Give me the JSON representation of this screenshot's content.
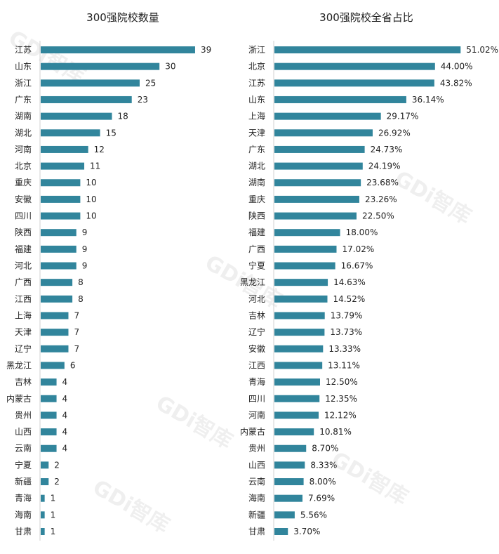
{
  "watermark": "GDi智库",
  "bar_color": "#31859C",
  "chart_data": [
    {
      "type": "bar",
      "orientation": "horizontal",
      "title": "300强院校数量",
      "categories": [
        "江苏",
        "山东",
        "浙江",
        "广东",
        "湖南",
        "湖北",
        "河南",
        "北京",
        "重庆",
        "安徽",
        "四川",
        "陕西",
        "福建",
        "河北",
        "广西",
        "江西",
        "上海",
        "天津",
        "辽宁",
        "黑龙江",
        "吉林",
        "内蒙古",
        "贵州",
        "山西",
        "云南",
        "宁夏",
        "新疆",
        "青海",
        "海南",
        "甘肃"
      ],
      "values": [
        39,
        30,
        25,
        23,
        18,
        15,
        12,
        11,
        10,
        10,
        10,
        9,
        9,
        9,
        8,
        8,
        7,
        7,
        7,
        6,
        4,
        4,
        4,
        4,
        4,
        2,
        2,
        1,
        1,
        1
      ],
      "value_labels": [
        "39",
        "30",
        "25",
        "23",
        "18",
        "15",
        "12",
        "11",
        "10",
        "10",
        "10",
        "9",
        "9",
        "9",
        "8",
        "8",
        "7",
        "7",
        "7",
        "6",
        "4",
        "4",
        "4",
        "4",
        "4",
        "2",
        "2",
        "1",
        "1",
        "1"
      ],
      "xlim": [
        0,
        45
      ],
      "grid": false
    },
    {
      "type": "bar",
      "orientation": "horizontal",
      "title": "300强院校全省占比",
      "categories": [
        "浙江",
        "北京",
        "江苏",
        "山东",
        "上海",
        "天津",
        "广东",
        "湖北",
        "湖南",
        "重庆",
        "陕西",
        "福建",
        "广西",
        "宁夏",
        "黑龙江",
        "河北",
        "吉林",
        "辽宁",
        "安徽",
        "江西",
        "青海",
        "四川",
        "河南",
        "内蒙古",
        "贵州",
        "山西",
        "云南",
        "海南",
        "新疆",
        "甘肃"
      ],
      "values": [
        51.02,
        44.0,
        43.82,
        36.14,
        29.17,
        26.92,
        24.73,
        24.19,
        23.68,
        23.26,
        22.5,
        18.0,
        17.02,
        16.67,
        14.63,
        14.52,
        13.79,
        13.73,
        13.33,
        13.11,
        12.5,
        12.35,
        12.12,
        10.81,
        8.7,
        8.33,
        8.0,
        7.69,
        5.56,
        3.7
      ],
      "value_labels": [
        "51.02%",
        "44.00%",
        "43.82%",
        "36.14%",
        "29.17%",
        "26.92%",
        "24.73%",
        "24.19%",
        "23.68%",
        "23.26%",
        "22.50%",
        "18.00%",
        "17.02%",
        "16.67%",
        "14.63%",
        "14.52%",
        "13.79%",
        "13.73%",
        "13.33%",
        "13.11%",
        "12.50%",
        "12.35%",
        "12.12%",
        "10.81%",
        "8.70%",
        "8.33%",
        "8.00%",
        "7.69%",
        "5.56%",
        "3.70%"
      ],
      "xlim": [
        0,
        60
      ],
      "grid": false
    }
  ]
}
